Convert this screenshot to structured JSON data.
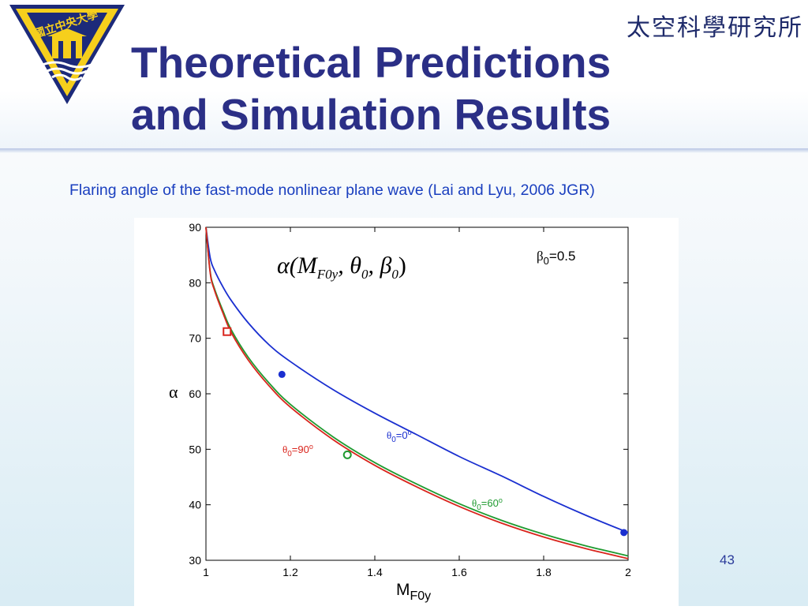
{
  "header": {
    "institute": "太空科學研究所",
    "title_line1": "Theoretical Predictions",
    "title_line2": "and Simulation Results",
    "logo": {
      "name": "university-seal",
      "text": "國立中央大學"
    }
  },
  "caption": "Flaring angle of the fast-mode nonlinear plane wave (Lai and Lyu, 2006 JGR)",
  "page_number": "43",
  "colors": {
    "title": "#2b2f86",
    "caption": "#1a3fbf",
    "theta0_0": "#1a2fd0",
    "theta0_60": "#1f9a30",
    "theta0_90": "#d9241c"
  },
  "chart_data": {
    "type": "line",
    "xlabel": "M",
    "xlabel_sub": "F0y",
    "ylabel": "α",
    "xlim": [
      1,
      2
    ],
    "ylim": [
      30,
      90
    ],
    "xticks": [
      1,
      1.2,
      1.4,
      1.6,
      1.8,
      2
    ],
    "xtick_labels": [
      "1",
      "1.2",
      "1.4",
      "1.6",
      "1.8",
      "2"
    ],
    "yticks": [
      30,
      40,
      50,
      60,
      70,
      80,
      90
    ],
    "ytick_labels": [
      "30",
      "40",
      "50",
      "60",
      "70",
      "80",
      "90"
    ],
    "grid": false,
    "formula": "α(M F0y , θ0 , β0 )",
    "annotations": {
      "beta": {
        "symbol": "β",
        "sub": "0",
        "rest": "=0.5"
      }
    },
    "x": [
      1.0,
      1.01,
      1.02,
      1.04,
      1.06,
      1.1,
      1.15,
      1.2,
      1.3,
      1.4,
      1.5,
      1.6,
      1.7,
      1.8,
      1.9,
      2.0
    ],
    "series": [
      {
        "name_symbol": "θ",
        "name_sub": "0",
        "name_rest": "=0",
        "name_sup": "o",
        "color": "#1a2fd0",
        "values": [
          90,
          84.5,
          82.3,
          79.3,
          76.8,
          72.8,
          68.8,
          65.8,
          60.8,
          56.5,
          52.6,
          48.7,
          45.2,
          41.5,
          38.1,
          35.0
        ],
        "marker": "filled-circle",
        "markers": [
          [
            1.18,
            63.5
          ],
          [
            1.99,
            35.0
          ]
        ]
      },
      {
        "name_symbol": "θ",
        "name_sub": "0",
        "name_rest": "=60",
        "name_sup": "o",
        "color": "#1f9a30",
        "values": [
          90,
          82.0,
          79.0,
          75.0,
          71.5,
          66.6,
          61.9,
          58.1,
          52.3,
          47.6,
          43.7,
          40.2,
          37.2,
          34.7,
          32.6,
          30.8
        ],
        "marker": "open-circle",
        "markers": [
          [
            1.335,
            49.0
          ]
        ]
      },
      {
        "name_symbol": "θ",
        "name_sub": "0",
        "name_rest": "=90",
        "name_sup": "o",
        "color": "#d9241c",
        "values": [
          90,
          81.8,
          78.7,
          74.6,
          71.0,
          66.1,
          61.4,
          57.6,
          51.8,
          47.1,
          43.2,
          39.7,
          36.7,
          34.2,
          32.1,
          30.3
        ],
        "marker": "open-square",
        "markers": [
          [
            1.05,
            71.2
          ]
        ]
      }
    ]
  }
}
